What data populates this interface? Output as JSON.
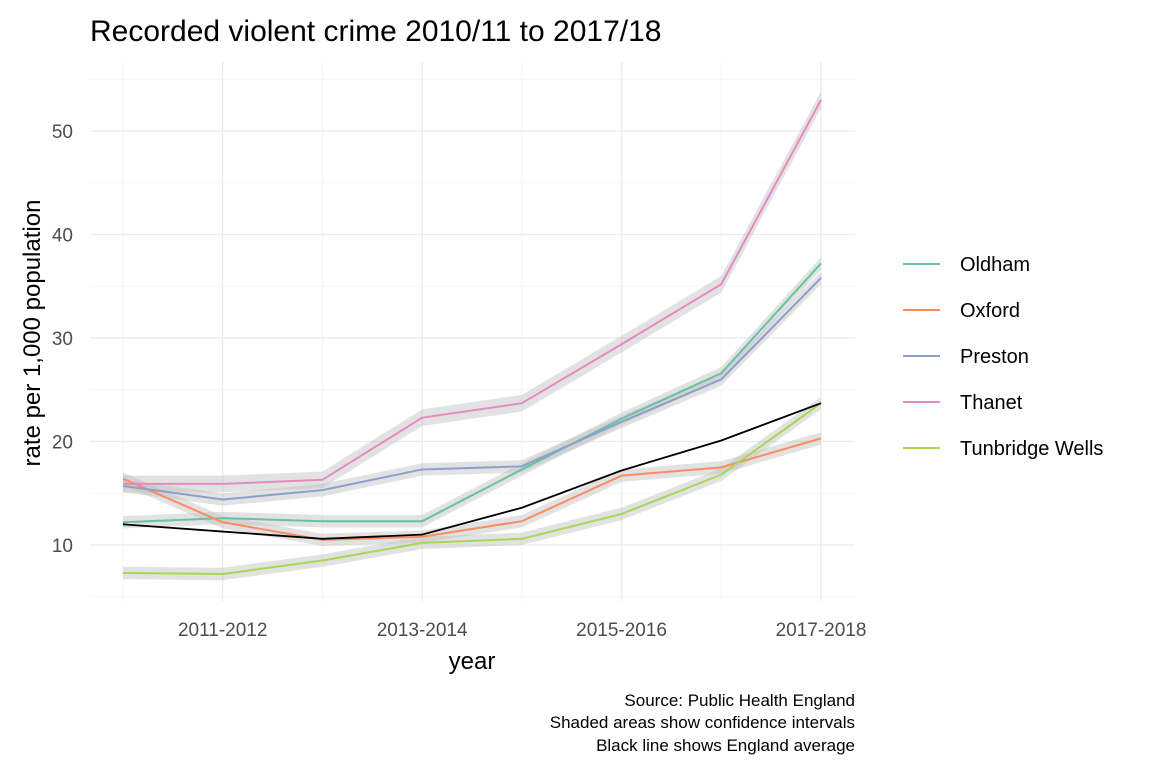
{
  "chart_data": {
    "type": "line",
    "title": "Recorded violent crime 2010/11 to 2017/18",
    "xlabel": "year",
    "ylabel": "rate per 1,000 population",
    "x": [
      "2010-2011",
      "2011-2012",
      "2012-2013",
      "2013-2014",
      "2014-2015",
      "2015-2016",
      "2016-2017",
      "2017-2018"
    ],
    "x_tick_labels": [
      "2011-2012",
      "2013-2014",
      "2015-2016",
      "2017-2018"
    ],
    "y_ticks": [
      10,
      20,
      30,
      40,
      50
    ],
    "ylim": [
      5,
      55
    ],
    "grid": true,
    "legend_position": "right",
    "series": [
      {
        "name": "Oldham",
        "color": "#66c2a5",
        "ci_halfwidth": 0.6,
        "values": [
          12.2,
          12.6,
          12.3,
          12.3,
          17.3,
          22.2,
          26.6,
          37.2
        ]
      },
      {
        "name": "Oxford",
        "color": "#fc8d62",
        "ci_halfwidth": 0.6,
        "values": [
          16.4,
          12.2,
          10.5,
          10.8,
          12.3,
          16.7,
          17.5,
          20.3
        ]
      },
      {
        "name": "Preston",
        "color": "#8da0cb",
        "ci_halfwidth": 0.6,
        "values": [
          15.7,
          14.4,
          15.3,
          17.3,
          17.6,
          21.9,
          26.0,
          35.8
        ]
      },
      {
        "name": "Thanet",
        "color": "#e78ac3",
        "ci_halfwidth": 0.8,
        "values": [
          15.9,
          15.9,
          16.3,
          22.3,
          23.7,
          29.4,
          35.2,
          53.0
        ]
      },
      {
        "name": "Tunbridge Wells",
        "color": "#a6d854",
        "ci_halfwidth": 0.6,
        "values": [
          7.3,
          7.2,
          8.5,
          10.2,
          10.6,
          13.0,
          16.8,
          23.7
        ]
      }
    ],
    "reference_line": {
      "color": "#000000",
      "values": [
        12.0,
        11.3,
        10.6,
        11.0,
        13.6,
        17.2,
        20.1,
        23.7
      ]
    }
  },
  "caption": {
    "line1": "Source: Public Health England",
    "line2": "Shaded areas show confidence intervals",
    "line3": "Black line shows England average"
  }
}
